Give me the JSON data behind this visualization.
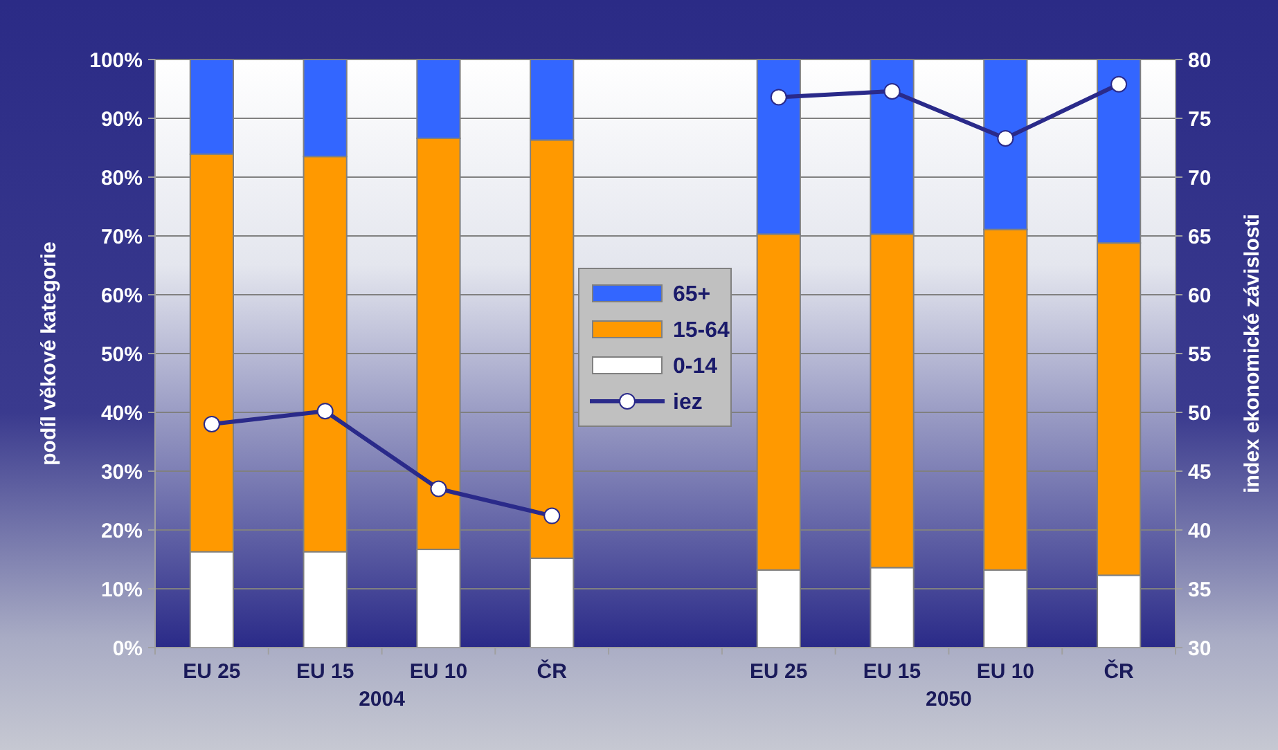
{
  "chart_data": {
    "type": "bar",
    "stacked": true,
    "categories": [
      "EU 25",
      "EU 15",
      "EU 10",
      "ČR",
      null,
      "EU 25",
      "EU 15",
      "EU 10",
      "ČR"
    ],
    "series": [
      {
        "name": "0-14",
        "color": "#ffffff",
        "values": [
          16.3,
          16.3,
          16.7,
          15.2,
          null,
          13.2,
          13.6,
          13.2,
          12.3
        ]
      },
      {
        "name": "15-64",
        "color": "#ff9900",
        "values": [
          67.6,
          67.2,
          69.9,
          71.1,
          null,
          57.1,
          56.7,
          57.9,
          56.5
        ]
      },
      {
        "name": "65+",
        "color": "#3366ff",
        "values": [
          16.1,
          16.5,
          13.4,
          13.7,
          null,
          29.7,
          29.7,
          28.9,
          31.2
        ]
      },
      {
        "name": "iez",
        "type": "line",
        "axis": "y2",
        "color": "#2a2a8a",
        "marker": "circle",
        "values": [
          49.0,
          50.1,
          43.5,
          41.2,
          null,
          76.8,
          77.3,
          73.3,
          77.9
        ]
      }
    ],
    "ylabel": "podíl věkové kategorie",
    "y2label": "index ekonomické závislosti",
    "ylim": [
      0,
      100
    ],
    "yticks": [
      {
        "value": 0,
        "label": "0%"
      },
      {
        "value": 10,
        "label": "10%"
      },
      {
        "value": 20,
        "label": "20%"
      },
      {
        "value": 30,
        "label": "30%"
      },
      {
        "value": 40,
        "label": "40%"
      },
      {
        "value": 50,
        "label": "50%"
      },
      {
        "value": 60,
        "label": "60%"
      },
      {
        "value": 70,
        "label": "70%"
      },
      {
        "value": 80,
        "label": "80%"
      },
      {
        "value": 90,
        "label": "90%"
      },
      {
        "value": 100,
        "label": "100%"
      }
    ],
    "y2lim": [
      30,
      80
    ],
    "y2ticks": [
      30,
      35,
      40,
      45,
      50,
      55,
      60,
      65,
      70,
      75,
      80
    ],
    "annotations": [
      "2004",
      "2050"
    ],
    "grid": "y",
    "legend": "center"
  }
}
